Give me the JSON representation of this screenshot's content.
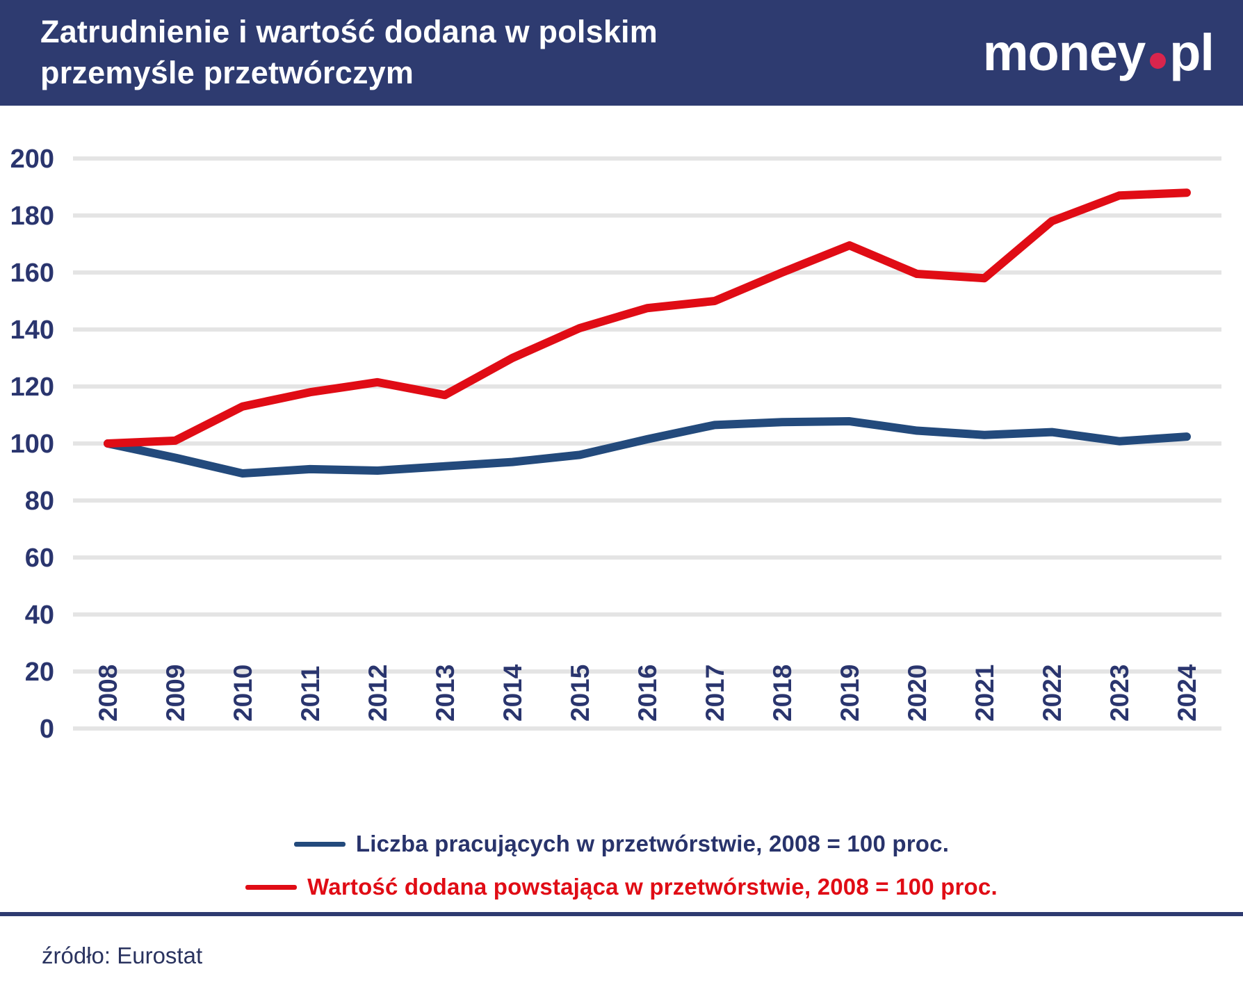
{
  "header": {
    "title": "Zatrudnienie i wartość dodana w polskim\nprzemyśle przetwórczym",
    "logo": {
      "part1": "money",
      "part2": "pl",
      "dot_color": "#d9254d"
    }
  },
  "chart_data": {
    "type": "line",
    "title": "Zatrudnienie i wartość dodana w polskim przemyśle przetwórczym",
    "x": [
      2008,
      2009,
      2010,
      2011,
      2012,
      2013,
      2014,
      2015,
      2016,
      2017,
      2018,
      2019,
      2020,
      2021,
      2022,
      2023,
      2024
    ],
    "series": [
      {
        "name": "Liczba pracujących w przetwórstwie, 2008 = 100 proc.",
        "color": "#234a7c",
        "text_color": "#28336b",
        "values": [
          100,
          95,
          89.5,
          91,
          90.5,
          92,
          93.5,
          96,
          101.5,
          106.5,
          107.5,
          107.8,
          104.5,
          103,
          104,
          100.8,
          102.4
        ]
      },
      {
        "name": "Wartość dodana powstająca w przetwórstwie, 2008 = 100 proc.",
        "color": "#e00c15",
        "text_color": "#e00c15",
        "values": [
          100,
          101,
          113,
          118,
          121.5,
          117,
          130,
          140.5,
          147.5,
          150,
          160,
          169.5,
          159.5,
          158,
          178,
          187,
          188
        ]
      }
    ],
    "ylim": [
      0,
      200
    ],
    "ytick_step": 20,
    "grid": "horizontal",
    "gridline_color": "#e4e4e4",
    "axis_label_color": "#2a356e",
    "legend_position": "bottom"
  },
  "footer": {
    "source": "źródło: Eurostat"
  }
}
